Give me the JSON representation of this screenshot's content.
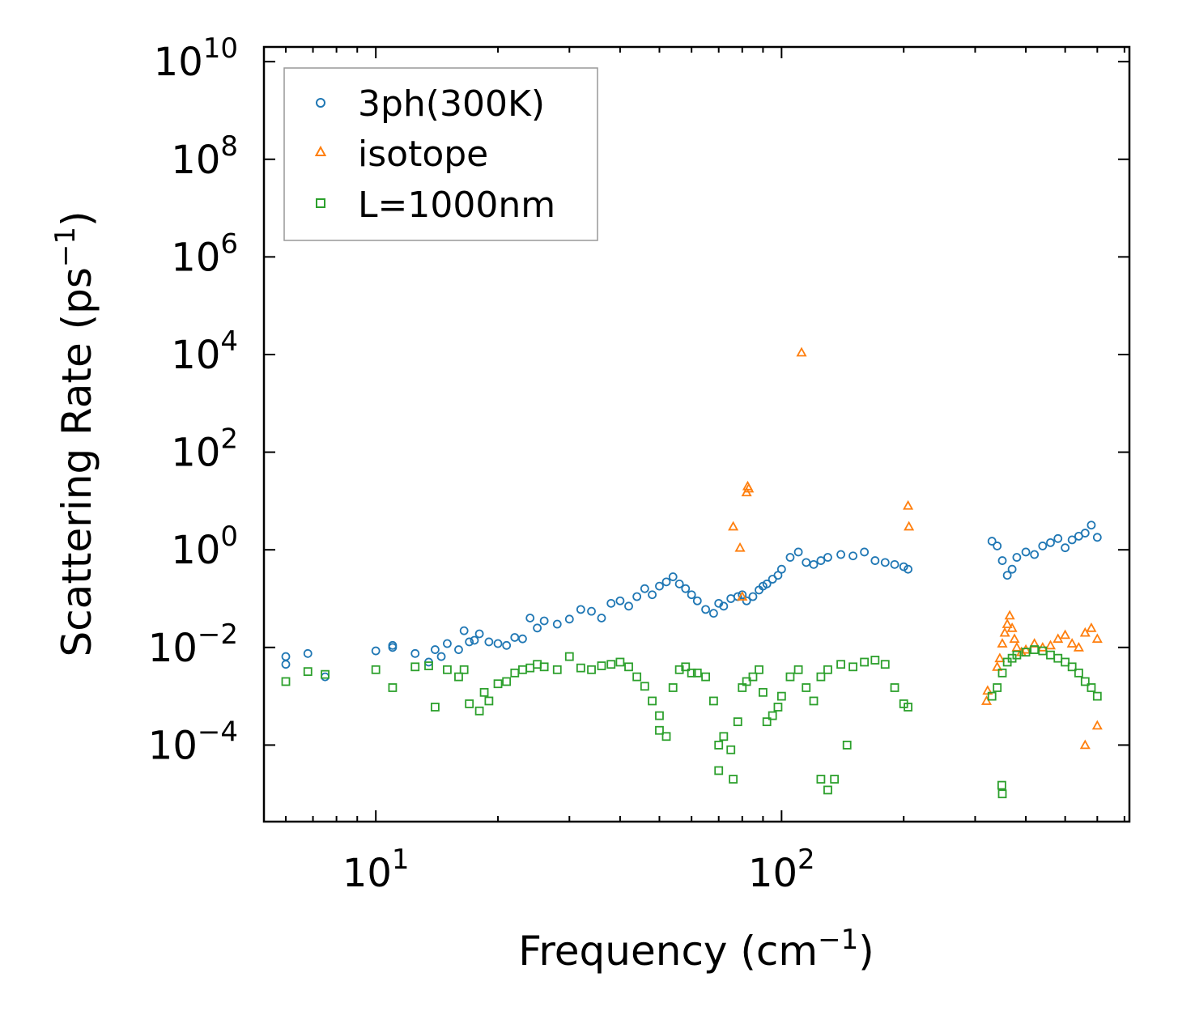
{
  "chart_data": {
    "type": "scatter",
    "xscale": "log",
    "yscale": "log",
    "xlabel": "Frequency (cm",
    "xlabel_sup": "−1",
    "xlabel_end": ")",
    "ylabel": "Scattering Rate (ps",
    "ylabel_sup": "−1",
    "ylabel_end": ")",
    "xlim": [
      5.3,
      720
    ],
    "ylim": [
      2.7e-06,
      20000000000
    ],
    "x_ticks": [
      {
        "value": 10,
        "base": "10",
        "exp": "1"
      },
      {
        "value": 100,
        "base": "10",
        "exp": "2"
      }
    ],
    "y_ticks": [
      {
        "value": 0.0001,
        "base": "10",
        "exp": "−4"
      },
      {
        "value": 0.01,
        "base": "10",
        "exp": "−2"
      },
      {
        "value": 1,
        "base": "10",
        "exp": "0"
      },
      {
        "value": 100,
        "base": "10",
        "exp": "2"
      },
      {
        "value": 10000,
        "base": "10",
        "exp": "4"
      },
      {
        "value": 1000000,
        "base": "10",
        "exp": "6"
      },
      {
        "value": 100000000,
        "base": "10",
        "exp": "8"
      },
      {
        "value": 10000000000,
        "base": "10",
        "exp": "10"
      }
    ],
    "legend_position": "top-left",
    "series": [
      {
        "name": "3ph(300K)",
        "marker": "circle",
        "color": "#1f77b4",
        "x": [
          6,
          6,
          6.8,
          7.5,
          10,
          11,
          11,
          12.5,
          13.5,
          14,
          14.5,
          15,
          16,
          16.5,
          17,
          17.5,
          18,
          19,
          20,
          21,
          22,
          23,
          24,
          25,
          26,
          28,
          30,
          32,
          34,
          36,
          38,
          40,
          42,
          44,
          46,
          48,
          50,
          52,
          54,
          56,
          58,
          60,
          62,
          65,
          68,
          70,
          72,
          75,
          78,
          80,
          82,
          85,
          88,
          90,
          92,
          95,
          98,
          100,
          105,
          110,
          115,
          120,
          125,
          130,
          140,
          150,
          160,
          170,
          180,
          190,
          200,
          205,
          330,
          340,
          350,
          360,
          370,
          380,
          400,
          420,
          440,
          460,
          480,
          500,
          520,
          540,
          560,
          580,
          600
        ],
        "y": [
          0.0065,
          0.0045,
          0.0075,
          0.0025,
          0.0085,
          0.011,
          0.01,
          0.0075,
          0.005,
          0.009,
          0.0065,
          0.012,
          0.009,
          0.022,
          0.013,
          0.014,
          0.019,
          0.013,
          0.012,
          0.011,
          0.016,
          0.015,
          0.04,
          0.025,
          0.035,
          0.03,
          0.038,
          0.06,
          0.055,
          0.04,
          0.08,
          0.09,
          0.07,
          0.11,
          0.16,
          0.12,
          0.18,
          0.22,
          0.28,
          0.2,
          0.16,
          0.12,
          0.09,
          0.06,
          0.05,
          0.08,
          0.07,
          0.1,
          0.11,
          0.12,
          0.09,
          0.11,
          0.15,
          0.18,
          0.2,
          0.25,
          0.3,
          0.4,
          0.7,
          0.9,
          0.55,
          0.5,
          0.6,
          0.7,
          0.8,
          0.75,
          0.9,
          0.6,
          0.55,
          0.5,
          0.45,
          0.4,
          1.5,
          1.2,
          0.6,
          0.3,
          0.4,
          0.7,
          0.9,
          0.8,
          1.2,
          1.4,
          1.7,
          1.1,
          1.6,
          1.9,
          2.2,
          3.2,
          1.8
        ]
      },
      {
        "name": "isotope",
        "marker": "triangle",
        "color": "#ff7f0e",
        "x": [
          76,
          79,
          80,
          82,
          82.5,
          83,
          112,
          205,
          206,
          320,
          322,
          340,
          345,
          350,
          355,
          360,
          365,
          370,
          375,
          380,
          390,
          400,
          420,
          440,
          460,
          480,
          500,
          520,
          540,
          560,
          580,
          600,
          560,
          600
        ],
        "y": [
          3,
          1.1,
          0.11,
          15,
          20,
          18,
          11000,
          8,
          3,
          0.0008,
          0.0013,
          0.004,
          0.006,
          0.012,
          0.02,
          0.03,
          0.045,
          0.025,
          0.015,
          0.01,
          0.008,
          0.009,
          0.012,
          0.01,
          0.011,
          0.015,
          0.018,
          0.012,
          0.01,
          0.02,
          0.025,
          0.015,
          0.0001,
          0.00025
        ]
      },
      {
        "name": "L=1000nm",
        "marker": "square",
        "color": "#2ca02c",
        "x": [
          6,
          6.8,
          7.5,
          10,
          11,
          12.5,
          13.5,
          14,
          15,
          16,
          16.5,
          17,
          18,
          18.5,
          19,
          20,
          21,
          22,
          23,
          24,
          25,
          26,
          28,
          30,
          32,
          34,
          36,
          38,
          40,
          42,
          44,
          46,
          48,
          50,
          52,
          54,
          56,
          58,
          60,
          62,
          65,
          68,
          70,
          72,
          75,
          78,
          80,
          82,
          85,
          88,
          90,
          92,
          95,
          98,
          100,
          105,
          110,
          115,
          120,
          125,
          130,
          140,
          150,
          160,
          170,
          180,
          190,
          200,
          205,
          330,
          340,
          350,
          360,
          370,
          380,
          400,
          420,
          440,
          460,
          480,
          500,
          520,
          540,
          560,
          580,
          600,
          125,
          130,
          135,
          145,
          50,
          70,
          76,
          349,
          350
        ],
        "y": [
          0.002,
          0.0032,
          0.0028,
          0.0035,
          0.0015,
          0.004,
          0.0042,
          0.0006,
          0.0035,
          0.0025,
          0.0035,
          0.0007,
          0.0005,
          0.0012,
          0.0008,
          0.0018,
          0.002,
          0.003,
          0.0035,
          0.0038,
          0.0045,
          0.004,
          0.0035,
          0.0065,
          0.0038,
          0.0035,
          0.0042,
          0.0045,
          0.005,
          0.004,
          0.0025,
          0.0016,
          0.0008,
          0.0004,
          0.00015,
          0.0015,
          0.0035,
          0.004,
          0.003,
          0.003,
          0.0025,
          0.0008,
          0.0001,
          0.00015,
          8e-05,
          0.0003,
          0.0015,
          0.002,
          0.0025,
          0.0035,
          0.0012,
          0.0003,
          0.0004,
          0.0006,
          0.001,
          0.0025,
          0.0035,
          0.0015,
          0.0008,
          0.0025,
          0.0035,
          0.0045,
          0.004,
          0.005,
          0.0055,
          0.0045,
          0.0015,
          0.0007,
          0.0006,
          0.001,
          0.0015,
          0.003,
          0.005,
          0.006,
          0.007,
          0.008,
          0.009,
          0.0085,
          0.007,
          0.006,
          0.005,
          0.004,
          0.003,
          0.002,
          0.0015,
          0.001,
          2e-05,
          1.2e-05,
          2e-05,
          0.0001,
          0.0002,
          3e-05,
          2e-05,
          1.5e-05,
          1e-05
        ]
      }
    ]
  }
}
